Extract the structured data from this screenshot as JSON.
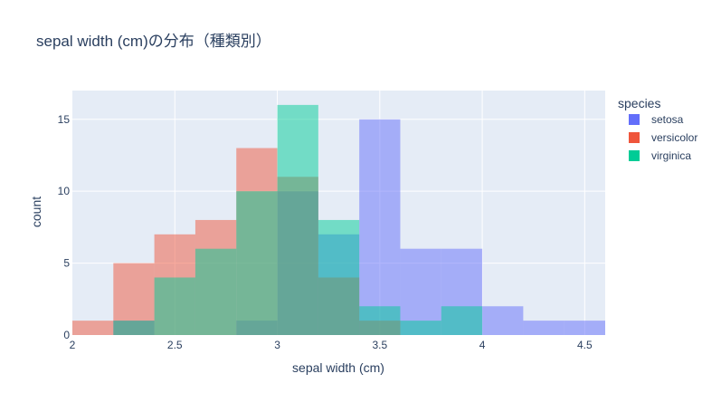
{
  "chart_data": {
    "type": "histogram",
    "title": "sepal width (cm)の分布（種類別）",
    "xlabel": "sepal width (cm)",
    "ylabel": "count",
    "xlim": [
      2,
      4.6
    ],
    "ylim": [
      0,
      17
    ],
    "bin_width": 0.2,
    "x_ticks": [
      2,
      2.5,
      3,
      3.5,
      4,
      4.5
    ],
    "x_tick_labels": [
      "2",
      "2.5",
      "3",
      "3.5",
      "4",
      "4.5"
    ],
    "y_ticks": [
      0,
      5,
      10,
      15
    ],
    "y_tick_labels": [
      "0",
      "5",
      "10",
      "15"
    ],
    "barmode": "overlay",
    "opacity": 0.5,
    "grid": true,
    "plot_bgcolor": "#E5ECF6",
    "legend": {
      "title": "species",
      "position": "right"
    },
    "series": [
      {
        "name": "setosa",
        "color": "#636EFA",
        "bins": [
          {
            "x0": 2.2,
            "x1": 2.4,
            "count": 1
          },
          {
            "x0": 2.8,
            "x1": 3.0,
            "count": 1
          },
          {
            "x0": 3.0,
            "x1": 3.2,
            "count": 10
          },
          {
            "x0": 3.2,
            "x1": 3.4,
            "count": 7
          },
          {
            "x0": 3.4,
            "x1": 3.6,
            "count": 15
          },
          {
            "x0": 3.6,
            "x1": 3.8,
            "count": 6
          },
          {
            "x0": 3.8,
            "x1": 4.0,
            "count": 6
          },
          {
            "x0": 4.0,
            "x1": 4.2,
            "count": 2
          },
          {
            "x0": 4.2,
            "x1": 4.4,
            "count": 1
          },
          {
            "x0": 4.4,
            "x1": 4.6,
            "count": 1
          }
        ]
      },
      {
        "name": "versicolor",
        "color": "#EF553B",
        "bins": [
          {
            "x0": 2.0,
            "x1": 2.2,
            "count": 1
          },
          {
            "x0": 2.2,
            "x1": 2.4,
            "count": 5
          },
          {
            "x0": 2.4,
            "x1": 2.6,
            "count": 7
          },
          {
            "x0": 2.6,
            "x1": 2.8,
            "count": 8
          },
          {
            "x0": 2.8,
            "x1": 3.0,
            "count": 13
          },
          {
            "x0": 3.0,
            "x1": 3.2,
            "count": 11
          },
          {
            "x0": 3.2,
            "x1": 3.4,
            "count": 4
          },
          {
            "x0": 3.4,
            "x1": 3.6,
            "count": 1
          }
        ]
      },
      {
        "name": "virginica",
        "color": "#00CC96",
        "bins": [
          {
            "x0": 2.2,
            "x1": 2.4,
            "count": 1
          },
          {
            "x0": 2.4,
            "x1": 2.6,
            "count": 4
          },
          {
            "x0": 2.6,
            "x1": 2.8,
            "count": 6
          },
          {
            "x0": 2.8,
            "x1": 3.0,
            "count": 10
          },
          {
            "x0": 3.0,
            "x1": 3.2,
            "count": 16
          },
          {
            "x0": 3.2,
            "x1": 3.4,
            "count": 8
          },
          {
            "x0": 3.4,
            "x1": 3.6,
            "count": 2
          },
          {
            "x0": 3.6,
            "x1": 3.8,
            "count": 1
          },
          {
            "x0": 3.8,
            "x1": 4.0,
            "count": 2
          }
        ]
      }
    ]
  }
}
